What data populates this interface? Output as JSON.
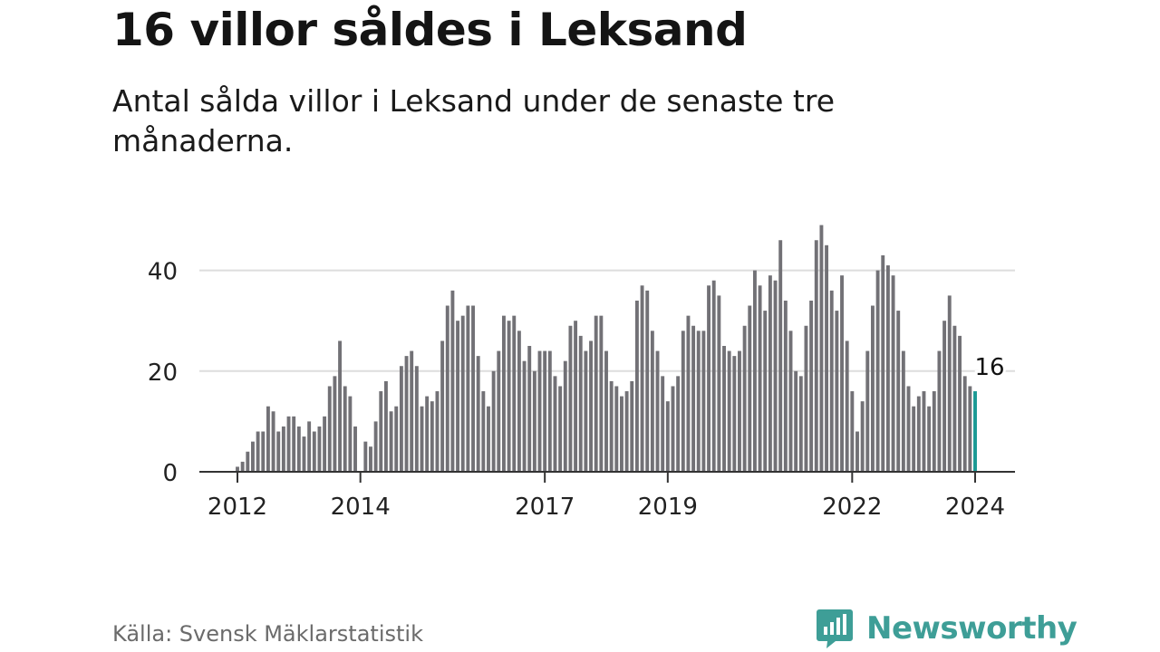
{
  "title": "16 villor såldes i Leksand",
  "subtitle": "Antal sålda villor i Leksand under de senaste tre månaderna.",
  "source": "Källa: Svensk Mäklarstatistik",
  "brand": {
    "name": "Newsworthy",
    "icon": "newsworthy-logo-icon"
  },
  "colors": {
    "bar": "#727176",
    "highlight": "#1a9a94",
    "grid": "#dddddd",
    "axis": "#333333",
    "brand": "#3e9e97"
  },
  "chart_data": {
    "type": "bar",
    "title": "16 villor såldes i Leksand",
    "xlabel": "",
    "ylabel": "",
    "ylim": [
      0,
      50
    ],
    "yticks": [
      0,
      20,
      40
    ],
    "x_start": "2012-01",
    "x_end": "2024-01",
    "xticks": [
      {
        "label": "2012",
        "index": 0
      },
      {
        "label": "2014",
        "index": 24
      },
      {
        "label": "2017",
        "index": 60
      },
      {
        "label": "2019",
        "index": 84
      },
      {
        "label": "2022",
        "index": 120
      },
      {
        "label": "2024",
        "index": 144
      }
    ],
    "values": [
      1,
      2,
      4,
      6,
      8,
      8,
      13,
      12,
      8,
      9,
      11,
      11,
      9,
      7,
      10,
      8,
      9,
      11,
      17,
      19,
      26,
      17,
      15,
      9,
      0,
      6,
      5,
      10,
      16,
      18,
      12,
      13,
      21,
      23,
      24,
      21,
      13,
      15,
      14,
      16,
      26,
      33,
      36,
      30,
      31,
      33,
      33,
      23,
      16,
      13,
      20,
      24,
      31,
      30,
      31,
      28,
      22,
      25,
      20,
      24,
      24,
      24,
      19,
      17,
      22,
      29,
      30,
      27,
      24,
      26,
      31,
      31,
      24,
      18,
      17,
      15,
      16,
      18,
      34,
      37,
      36,
      28,
      24,
      19,
      14,
      17,
      19,
      28,
      31,
      29,
      28,
      28,
      37,
      38,
      35,
      25,
      24,
      23,
      24,
      29,
      33,
      40,
      37,
      32,
      39,
      38,
      46,
      34,
      28,
      20,
      19,
      29,
      34,
      46,
      49,
      45,
      36,
      32,
      39,
      26,
      16,
      8,
      14,
      24,
      33,
      40,
      43,
      41,
      39,
      32,
      24,
      17,
      13,
      15,
      16,
      13,
      16,
      24,
      30,
      35,
      29,
      27,
      19,
      17,
      16
    ],
    "highlight_index": 144,
    "annotation": {
      "index": 144,
      "label": "16"
    }
  }
}
